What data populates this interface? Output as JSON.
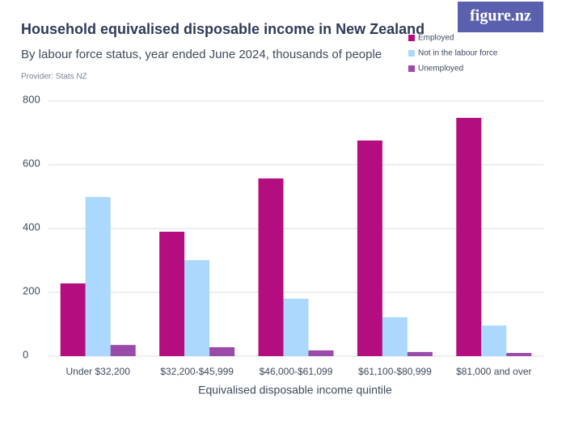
{
  "chart_data": {
    "type": "bar",
    "title": "Household equivalised disposable income in New Zealand",
    "subtitle": "By labour force status, year ended June 2024, thousands of people",
    "provider": "Provider: Stats NZ",
    "logo": "figure.nz",
    "x_label": "Equivalised disposable income quintile",
    "categories": [
      "Under $32,200",
      "$32,200-$45,999",
      "$46,000-$61,099",
      "$61,100-$80,999",
      "$81,000 and over"
    ],
    "series": [
      {
        "name": "Employed",
        "color": "#b30d80",
        "values": [
          228,
          390,
          557,
          676,
          747
        ]
      },
      {
        "name": "Not in the labour force",
        "color": "#acd8fd",
        "values": [
          499,
          301,
          180,
          122,
          96
        ]
      },
      {
        "name": "Unemployed",
        "color": "#9a4aa8",
        "values": [
          35,
          28,
          18,
          13,
          10
        ]
      }
    ],
    "ylim": [
      0,
      800
    ],
    "yticks": [
      0,
      200,
      400,
      600,
      800
    ],
    "grid": true
  }
}
